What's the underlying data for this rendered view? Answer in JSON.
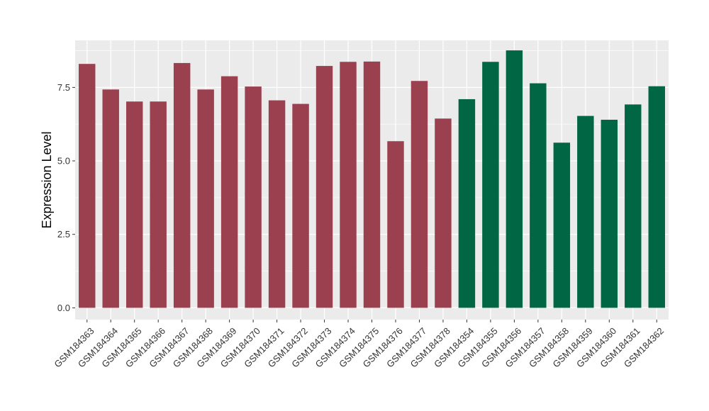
{
  "chart_data": {
    "type": "bar",
    "title": "",
    "xlabel": "",
    "ylabel": "Expression Level",
    "ylim": [
      -0.4,
      9.1
    ],
    "yticks": [
      0.0,
      2.5,
      5.0,
      7.5
    ],
    "ytick_labels": [
      "0.0",
      "2.5",
      "5.0",
      "7.5"
    ],
    "grid": true,
    "legend": "none",
    "panel_background": "#ebebeb",
    "categories": [
      "GSM184363",
      "GSM184364",
      "GSM184365",
      "GSM184366",
      "GSM184367",
      "GSM184368",
      "GSM184369",
      "GSM184370",
      "GSM184371",
      "GSM184372",
      "GSM184373",
      "GSM184374",
      "GSM184375",
      "GSM184376",
      "GSM184377",
      "GSM184378",
      "GSM184354",
      "GSM184355",
      "GSM184356",
      "GSM184357",
      "GSM184358",
      "GSM184359",
      "GSM184360",
      "GSM184361",
      "GSM184362"
    ],
    "values": [
      8.3,
      7.43,
      7.02,
      7.02,
      8.33,
      7.43,
      7.88,
      7.53,
      7.06,
      6.94,
      8.23,
      8.37,
      8.38,
      5.67,
      7.72,
      6.44,
      7.1,
      8.37,
      8.76,
      7.64,
      5.62,
      6.53,
      6.4,
      6.92,
      7.54
    ],
    "bar_colors": [
      "#9a404f",
      "#9a404f",
      "#9a404f",
      "#9a404f",
      "#9a404f",
      "#9a404f",
      "#9a404f",
      "#9a404f",
      "#9a404f",
      "#9a404f",
      "#9a404f",
      "#9a404f",
      "#9a404f",
      "#9a404f",
      "#9a404f",
      "#9a404f",
      "#006644",
      "#006644",
      "#006644",
      "#006644",
      "#006644",
      "#006644",
      "#006644",
      "#006644",
      "#006644"
    ]
  }
}
